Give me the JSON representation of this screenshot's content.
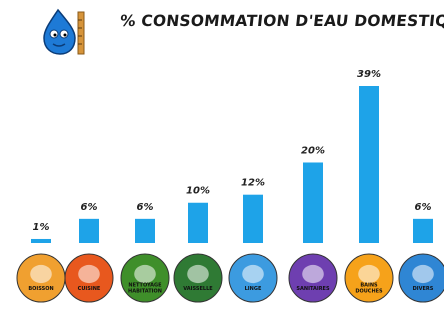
{
  "chart_data": {
    "type": "bar",
    "title": "% CONSOMMATION D'EAU DOMESTIQUE",
    "categories": [
      "BOISSON",
      "CUISINE",
      "NETTOYAGE HABITATION",
      "VAISSELLE",
      "LINGE",
      "SANITAIRES",
      "BAINS DOUCHES",
      "DIVERS"
    ],
    "values": [
      1,
      6,
      6,
      10,
      12,
      20,
      39,
      6
    ],
    "value_labels": [
      "1%",
      "6%",
      "6%",
      "10%",
      "12%",
      "20%",
      "39%",
      "6%"
    ],
    "ylim": [
      0,
      40
    ],
    "grid": false,
    "legend": "none",
    "bar_color": "#1ea3e8",
    "icons": [
      "pitcher-icon",
      "cooking-pot-icon",
      "bucket-icon",
      "dishes-icon",
      "washing-machine-icon",
      "toilet-icon",
      "bathtub-icon",
      "fishbowl-icon"
    ],
    "icon_colors": [
      "#f0a030",
      "#e8581e",
      "#3f8f2a",
      "#2f7a34",
      "#3c9be0",
      "#6e3fb0",
      "#f6a21a",
      "#2f86d4"
    ]
  },
  "logo": "water-drop-mascot-icon"
}
